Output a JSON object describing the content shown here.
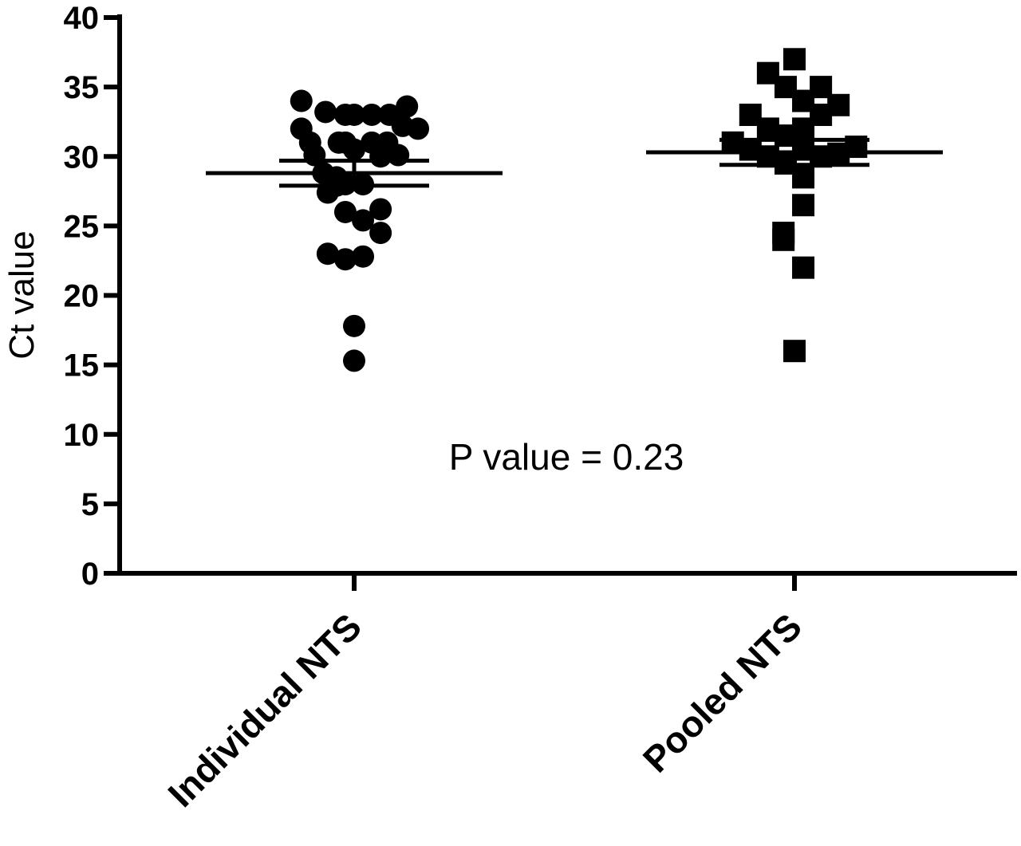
{
  "chart_data": {
    "type": "scatter",
    "title": "",
    "xlabel": "",
    "ylabel": "Ct value",
    "ylim": [
      0,
      40
    ],
    "yticks": [
      "0",
      "5",
      "10",
      "15",
      "20",
      "25",
      "30",
      "35",
      "40"
    ],
    "categories": [
      "Individual NTS",
      "Pooled NTS"
    ],
    "annotation": "P value = 0.23",
    "grid": false,
    "series": [
      {
        "marker": "circle",
        "color": "#000000",
        "mean": 28.8,
        "error_upper": 29.7,
        "error_lower": 27.9,
        "points": [
          {
            "x": -0.24,
            "y": 32.0
          },
          {
            "x": -0.24,
            "y": 34.0
          },
          {
            "x": -0.2,
            "y": 31.0
          },
          {
            "x": -0.18,
            "y": 30.1
          },
          {
            "x": -0.13,
            "y": 33.2
          },
          {
            "x": -0.14,
            "y": 28.8
          },
          {
            "x": -0.12,
            "y": 27.4
          },
          {
            "x": -0.12,
            "y": 23.0
          },
          {
            "x": -0.07,
            "y": 31.0
          },
          {
            "x": -0.08,
            "y": 28.5
          },
          {
            "x": -0.08,
            "y": 27.9
          },
          {
            "x": -0.04,
            "y": 33.0
          },
          {
            "x": -0.04,
            "y": 31.0
          },
          {
            "x": -0.04,
            "y": 28.0
          },
          {
            "x": -0.04,
            "y": 26.0
          },
          {
            "x": -0.04,
            "y": 22.6
          },
          {
            "x": 0.0,
            "y": 33.0
          },
          {
            "x": 0.0,
            "y": 30.5
          },
          {
            "x": 0.0,
            "y": 17.8
          },
          {
            "x": 0.0,
            "y": 15.3
          },
          {
            "x": 0.04,
            "y": 28.0
          },
          {
            "x": 0.04,
            "y": 25.4
          },
          {
            "x": 0.04,
            "y": 22.8
          },
          {
            "x": 0.08,
            "y": 33.0
          },
          {
            "x": 0.08,
            "y": 31.0
          },
          {
            "x": 0.12,
            "y": 30.0
          },
          {
            "x": 0.12,
            "y": 26.2
          },
          {
            "x": 0.12,
            "y": 24.5
          },
          {
            "x": 0.16,
            "y": 33.0
          },
          {
            "x": 0.15,
            "y": 31.0
          },
          {
            "x": 0.2,
            "y": 30.1
          },
          {
            "x": 0.22,
            "y": 32.2
          },
          {
            "x": 0.24,
            "y": 33.6
          },
          {
            "x": 0.29,
            "y": 32.0
          }
        ]
      },
      {
        "marker": "square",
        "color": "#000000",
        "mean": 30.3,
        "error_upper": 31.2,
        "error_lower": 29.4,
        "points": [
          {
            "x": -0.28,
            "y": 31.0
          },
          {
            "x": -0.2,
            "y": 33.0
          },
          {
            "x": -0.2,
            "y": 30.5
          },
          {
            "x": -0.12,
            "y": 36.0
          },
          {
            "x": -0.12,
            "y": 32.0
          },
          {
            "x": -0.12,
            "y": 30.0
          },
          {
            "x": -0.04,
            "y": 35.0
          },
          {
            "x": -0.04,
            "y": 31.5
          },
          {
            "x": -0.04,
            "y": 29.5
          },
          {
            "x": -0.05,
            "y": 24.5
          },
          {
            "x": -0.05,
            "y": 24.0
          },
          {
            "x": 0.0,
            "y": 37.0
          },
          {
            "x": 0.04,
            "y": 34.0
          },
          {
            "x": 0.04,
            "y": 32.0
          },
          {
            "x": 0.04,
            "y": 30.5
          },
          {
            "x": 0.04,
            "y": 28.5
          },
          {
            "x": 0.04,
            "y": 26.5
          },
          {
            "x": 0.04,
            "y": 22.0
          },
          {
            "x": 0.0,
            "y": 16.0
          },
          {
            "x": 0.12,
            "y": 35.0
          },
          {
            "x": 0.12,
            "y": 33.0
          },
          {
            "x": 0.12,
            "y": 30.0
          },
          {
            "x": 0.2,
            "y": 33.7
          },
          {
            "x": 0.2,
            "y": 30.2
          },
          {
            "x": 0.28,
            "y": 30.7
          }
        ]
      }
    ]
  }
}
